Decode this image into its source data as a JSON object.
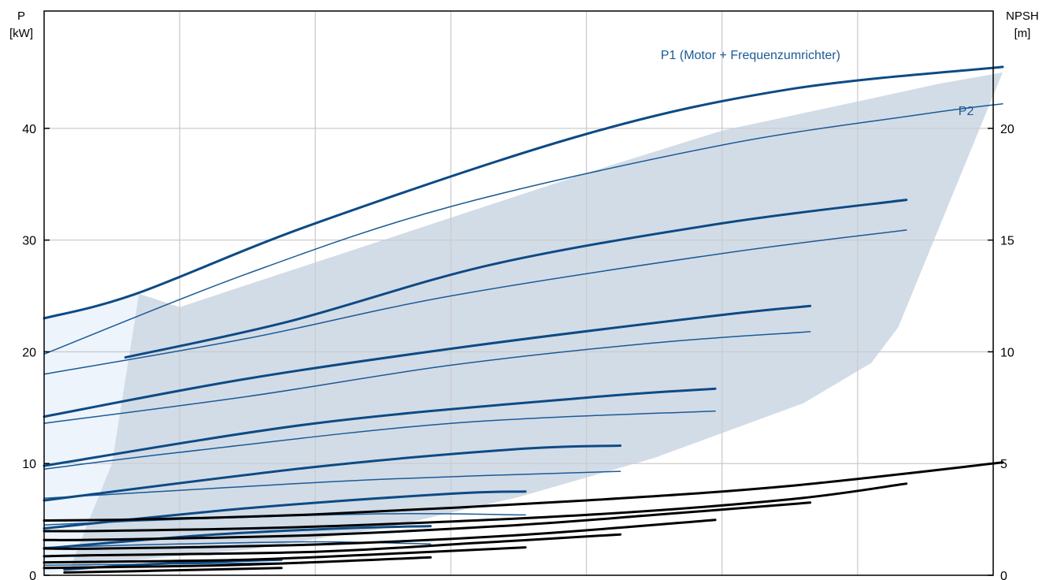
{
  "chart_data": {
    "type": "line",
    "y_left": {
      "label_line1": "P",
      "label_line2": "[kW]",
      "ticks": [
        0,
        10,
        20,
        30,
        40
      ],
      "range": [
        0,
        50.5
      ]
    },
    "y_right": {
      "label_line1": "NPSH",
      "label_line2": "[m]",
      "ticks": [
        0,
        5,
        10,
        15,
        20
      ],
      "range": [
        0,
        25.25
      ]
    },
    "x": {
      "range": [
        0,
        7
      ],
      "gridlines": [
        1,
        2,
        3,
        4,
        5,
        6,
        7
      ],
      "tick_labels_shown": false
    },
    "grid": true,
    "annotations": [
      {
        "text": "P1 (Motor + Frequenzumrichter)",
        "x": 5.21,
        "y": 46.2
      },
      {
        "text": "P2",
        "x": 6.8,
        "y": 41.2
      }
    ],
    "colors": {
      "p1": "#0d4a84",
      "p2": "#1a5a96",
      "npsh": "#000000",
      "operating_area": "#d2dce7",
      "low_flow_area": "#edf4fc",
      "grid": "#cccccc"
    },
    "operating_area": [
      [
        0.19,
        0
      ],
      [
        0.19,
        0.6
      ],
      [
        0.52,
        1.2
      ],
      [
        1.5,
        2.3
      ],
      [
        2.5,
        4.2
      ],
      [
        3.5,
        7.0
      ],
      [
        4.5,
        10.5
      ],
      [
        5.6,
        15.4
      ],
      [
        6.1,
        19.0
      ],
      [
        6.3,
        22.2
      ],
      [
        7.07,
        45.0
      ],
      [
        6.6,
        44.0
      ],
      [
        6.0,
        42.4
      ],
      [
        5.0,
        39.8
      ],
      [
        4.0,
        36.0
      ],
      [
        3.0,
        32.0
      ],
      [
        2.0,
        28.0
      ],
      [
        1.0,
        24.0
      ],
      [
        0.7,
        25.2
      ],
      [
        0.5,
        10.0
      ],
      [
        0.3,
        4.0
      ],
      [
        0.19,
        0.6
      ]
    ],
    "low_flow_area": [
      [
        0,
        0
      ],
      [
        0.19,
        0.6
      ],
      [
        0.3,
        4.0
      ],
      [
        0.5,
        10.0
      ],
      [
        0.7,
        25.2
      ],
      [
        0,
        23.0
      ],
      [
        0,
        0
      ]
    ],
    "series": [
      {
        "group": "p1",
        "points": [
          [
            0,
            23.0
          ],
          [
            0.68,
            25.2
          ],
          [
            2.0,
            31.5
          ],
          [
            4.0,
            39.5
          ],
          [
            5.5,
            43.5
          ],
          [
            7.07,
            45.5
          ]
        ]
      },
      {
        "group": "p1",
        "points": [
          [
            0.6,
            19.5
          ],
          [
            1.8,
            22.7
          ],
          [
            3.3,
            27.8
          ],
          [
            5.0,
            31.5
          ],
          [
            6.36,
            33.6
          ]
        ]
      },
      {
        "group": "p1",
        "points": [
          [
            0,
            14.2
          ],
          [
            1.5,
            17.6
          ],
          [
            3.2,
            20.6
          ],
          [
            5.0,
            23.3
          ],
          [
            5.65,
            24.1
          ]
        ]
      },
      {
        "group": "p1",
        "points": [
          [
            0,
            9.8
          ],
          [
            2.0,
            13.6
          ],
          [
            4.0,
            15.9
          ],
          [
            4.95,
            16.7
          ]
        ]
      },
      {
        "group": "p1",
        "points": [
          [
            0,
            6.7
          ],
          [
            2.0,
            9.7
          ],
          [
            3.5,
            11.3
          ],
          [
            4.25,
            11.6
          ]
        ]
      },
      {
        "group": "p1",
        "points": [
          [
            0,
            4.2
          ],
          [
            1.5,
            6.0
          ],
          [
            3.0,
            7.3
          ],
          [
            3.55,
            7.5
          ]
        ]
      },
      {
        "group": "p1",
        "points": [
          [
            0,
            2.4
          ],
          [
            1.2,
            3.6
          ],
          [
            2.2,
            4.2
          ],
          [
            2.85,
            4.4
          ]
        ]
      },
      {
        "group": "p1",
        "points": [
          [
            0.15,
            0.5
          ],
          [
            0.8,
            1.0
          ],
          [
            1.75,
            1.4
          ]
        ]
      },
      {
        "group": "p2",
        "points": [
          [
            0,
            19.8
          ],
          [
            1.5,
            27.0
          ],
          [
            3.0,
            33.0
          ],
          [
            5.0,
            38.5
          ],
          [
            6.5,
            41.3
          ],
          [
            7.07,
            42.2
          ]
        ]
      },
      {
        "group": "p2",
        "points": [
          [
            0,
            18.0
          ],
          [
            1.5,
            21.2
          ],
          [
            3.0,
            25.0
          ],
          [
            5.0,
            28.8
          ],
          [
            6.36,
            30.9
          ]
        ]
      },
      {
        "group": "p2",
        "points": [
          [
            0,
            13.6
          ],
          [
            1.5,
            16.0
          ],
          [
            3.0,
            18.8
          ],
          [
            4.5,
            20.8
          ],
          [
            5.65,
            21.8
          ]
        ]
      },
      {
        "group": "p2",
        "points": [
          [
            0,
            9.5
          ],
          [
            1.0,
            11.0
          ],
          [
            3.0,
            13.6
          ],
          [
            4.95,
            14.7
          ]
        ]
      },
      {
        "group": "p2",
        "points": [
          [
            0,
            6.9
          ],
          [
            1.0,
            7.6
          ],
          [
            2.5,
            8.6
          ],
          [
            4.25,
            9.3
          ]
        ]
      },
      {
        "group": "p2",
        "points": [
          [
            0,
            4.5
          ],
          [
            1.0,
            5.0
          ],
          [
            2.5,
            5.5
          ],
          [
            3.55,
            5.4
          ]
        ]
      },
      {
        "group": "p2",
        "points": [
          [
            0,
            2.5
          ],
          [
            1.0,
            2.8
          ],
          [
            2.0,
            3.0
          ],
          [
            2.85,
            2.8
          ]
        ]
      },
      {
        "group": "p2",
        "points": [
          [
            0,
            0.9
          ],
          [
            0.8,
            1.0
          ],
          [
            1.75,
            1.1
          ]
        ]
      },
      {
        "group": "npsh",
        "points": [
          [
            0,
            4.9
          ],
          [
            0.68,
            5.0
          ],
          [
            2.0,
            5.45
          ],
          [
            4.0,
            6.7
          ],
          [
            5.5,
            8.0
          ],
          [
            7.07,
            10.1
          ]
        ]
      },
      {
        "group": "npsh",
        "points": [
          [
            0,
            3.95
          ],
          [
            0.6,
            4.0
          ],
          [
            2.0,
            4.35
          ],
          [
            4.0,
            5.4
          ],
          [
            5.5,
            6.8
          ],
          [
            6.36,
            8.2
          ]
        ]
      },
      {
        "group": "npsh",
        "points": [
          [
            0,
            3.15
          ],
          [
            0.52,
            3.2
          ],
          [
            2.0,
            3.6
          ],
          [
            3.5,
            4.5
          ],
          [
            4.5,
            5.4
          ],
          [
            5.65,
            6.5
          ]
        ]
      },
      {
        "group": "npsh",
        "points": [
          [
            0,
            2.4
          ],
          [
            0.45,
            2.4
          ],
          [
            2.0,
            2.75
          ],
          [
            3.5,
            3.6
          ],
          [
            4.95,
            4.95
          ]
        ]
      },
      {
        "group": "npsh",
        "points": [
          [
            0,
            1.7
          ],
          [
            0.4,
            1.8
          ],
          [
            2.0,
            2.1
          ],
          [
            3.2,
            2.9
          ],
          [
            4.25,
            3.65
          ]
        ]
      },
      {
        "group": "npsh",
        "points": [
          [
            0,
            1.15
          ],
          [
            0.35,
            1.2
          ],
          [
            1.5,
            1.4
          ],
          [
            2.5,
            1.9
          ],
          [
            3.55,
            2.5
          ]
        ]
      },
      {
        "group": "npsh",
        "points": [
          [
            0,
            0.65
          ],
          [
            0.3,
            0.7
          ],
          [
            1.5,
            0.95
          ],
          [
            2.85,
            1.6
          ]
        ]
      },
      {
        "group": "npsh",
        "points": [
          [
            0.15,
            0.25
          ],
          [
            0.8,
            0.4
          ],
          [
            1.75,
            0.65
          ]
        ]
      }
    ]
  }
}
